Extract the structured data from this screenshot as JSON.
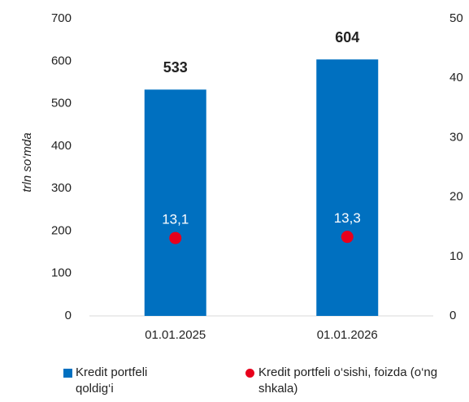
{
  "chart_data": {
    "type": "bar+scatter",
    "categories": [
      "01.01.2025",
      "01.01.2026"
    ],
    "y_label": "trln so‘mda",
    "ylim": [
      0,
      700
    ],
    "yticks": [
      0,
      100,
      200,
      300,
      400,
      500,
      600,
      700
    ],
    "y2lim": [
      0,
      50
    ],
    "y2ticks": [
      0,
      10,
      20,
      30,
      40,
      50
    ],
    "grid": false,
    "series": [
      {
        "name": "Kredit portfeli qoldig‘i",
        "type": "bar",
        "color": "#0070c0",
        "values": [
          533,
          604
        ]
      },
      {
        "name": "Kredit portfeli o‘sishi, foizda (o‘ng shkala)",
        "type": "scatter",
        "axis": "y2",
        "color": "#e8001c",
        "values": [
          13.1,
          13.3
        ],
        "value_labels": [
          "13,1",
          "13,3"
        ]
      }
    ]
  }
}
